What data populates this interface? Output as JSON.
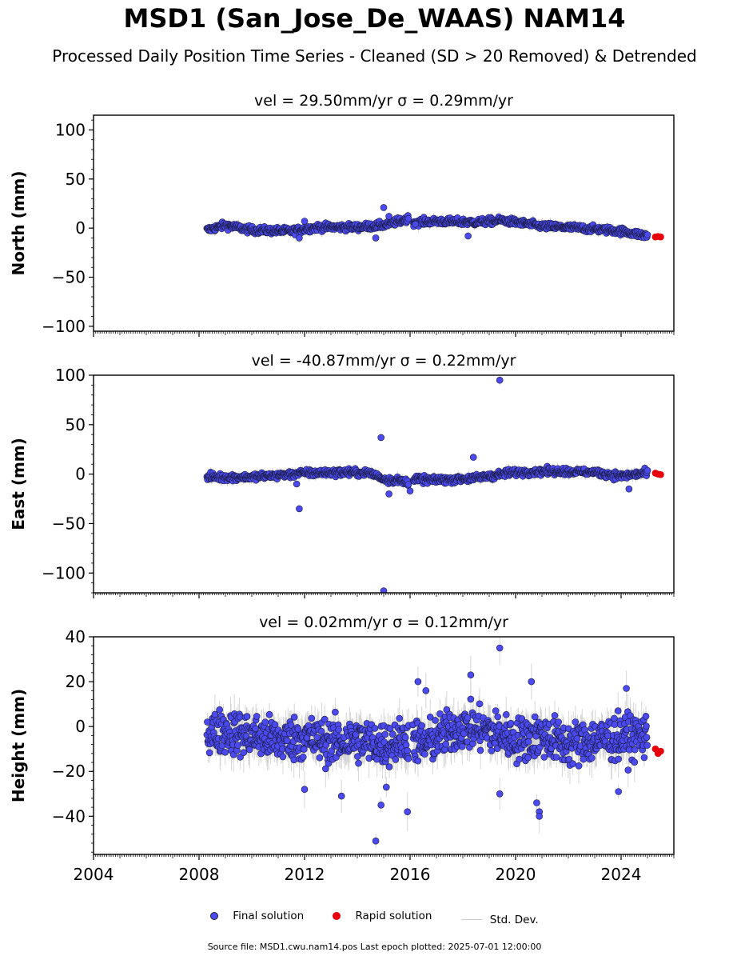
{
  "title": "MSD1 (San_Jose_De_WAAS) NAM14",
  "subtitle": "Processed Daily Position Time Series - Cleaned (SD > 20 Removed) & Detrended",
  "legend": {
    "final_label": "Final solution",
    "rapid_label": "Rapid solution",
    "std_label": "Std. Dev."
  },
  "colors": {
    "final": "#4a4af0",
    "rapid": "#e8000b",
    "std": "#cccccc"
  },
  "footer": "Source file: MSD1.cwu.nam14.pos  Last epoch plotted: 2025-07-01 12:00:00",
  "chart_data": [
    {
      "type": "scatter",
      "title": "vel = 29.50mm/yr   σ = 0.29mm/yr",
      "ylabel": "North (mm)",
      "xlim": [
        2004,
        2026
      ],
      "ylim": [
        -105,
        115
      ],
      "yticks": [
        -100,
        -50,
        0,
        50,
        100
      ],
      "xticks": [
        2004,
        2008,
        2012,
        2016,
        2020,
        2024
      ],
      "show_xtick_labels": false,
      "data_range": [
        2008.3,
        2025.0
      ],
      "series_shape": [
        [
          2008.3,
          -2
        ],
        [
          2009.0,
          3
        ],
        [
          2010.0,
          -2
        ],
        [
          2011.5,
          -3
        ],
        [
          2012.5,
          1
        ],
        [
          2014.0,
          1
        ],
        [
          2015.0,
          3
        ],
        [
          2016.0,
          10
        ],
        [
          2016.05,
          6
        ],
        [
          2017.0,
          7
        ],
        [
          2018.5,
          6
        ],
        [
          2019.5,
          8
        ],
        [
          2021.0,
          2
        ],
        [
          2022.5,
          0
        ],
        [
          2024.0,
          -3
        ],
        [
          2025.0,
          -8
        ]
      ],
      "noise": 2.5,
      "std_scale": 4,
      "outliers": [
        [
          2011.8,
          -10
        ],
        [
          2012.0,
          7
        ],
        [
          2014.7,
          -10
        ],
        [
          2015.0,
          21
        ],
        [
          2015.2,
          12
        ],
        [
          2016.2,
          4
        ],
        [
          2018.2,
          -8
        ]
      ],
      "rapid": [
        [
          2025.3,
          -9
        ],
        [
          2025.4,
          -8.5
        ],
        [
          2025.5,
          -9
        ]
      ]
    },
    {
      "type": "scatter",
      "title": "vel = -40.87mm/yr   σ = 0.22mm/yr",
      "ylabel": "East (mm)",
      "xlim": [
        2004,
        2026
      ],
      "ylim": [
        -120,
        100
      ],
      "yticks": [
        -100,
        -50,
        0,
        50,
        100
      ],
      "xticks": [
        2004,
        2008,
        2012,
        2016,
        2020,
        2024
      ],
      "show_xtick_labels": false,
      "data_range": [
        2008.3,
        2025.0
      ],
      "series_shape": [
        [
          2008.3,
          -3
        ],
        [
          2010.0,
          -3
        ],
        [
          2012.0,
          1
        ],
        [
          2013.5,
          2
        ],
        [
          2014.5,
          1
        ],
        [
          2015.0,
          -5
        ],
        [
          2016.0,
          -8
        ],
        [
          2016.05,
          -5
        ],
        [
          2017.0,
          -6
        ],
        [
          2018.5,
          -4
        ],
        [
          2020.0,
          2
        ],
        [
          2021.5,
          3
        ],
        [
          2023.0,
          2
        ],
        [
          2024.0,
          -2
        ],
        [
          2025.0,
          1
        ]
      ],
      "noise": 2.5,
      "std_scale": 4,
      "outliers": [
        [
          2011.8,
          -35
        ],
        [
          2011.7,
          -10
        ],
        [
          2014.9,
          37
        ],
        [
          2015.2,
          -20
        ],
        [
          2015.0,
          -118
        ],
        [
          2016.0,
          -17
        ],
        [
          2018.4,
          17
        ],
        [
          2019.4,
          95
        ],
        [
          2024.3,
          -15
        ]
      ],
      "rapid": [
        [
          2025.3,
          1
        ],
        [
          2025.4,
          0
        ],
        [
          2025.5,
          -0.5
        ]
      ]
    },
    {
      "type": "scatter",
      "title": "vel = 0.02mm/yr   σ = 0.12mm/yr",
      "ylabel": "Height (mm)",
      "xlim": [
        2004,
        2026
      ],
      "ylim": [
        -57,
        40
      ],
      "yticks": [
        -40,
        -20,
        0,
        20,
        40
      ],
      "xticks": [
        2004,
        2008,
        2012,
        2016,
        2020,
        2024
      ],
      "xtick_labels": [
        "2004",
        "2008",
        "2012",
        "2016",
        "2020",
        "2024"
      ],
      "show_xtick_labels": true,
      "data_range": [
        2008.3,
        2025.0
      ],
      "series_shape": [
        [
          2008.3,
          -3
        ],
        [
          2009.0,
          -2
        ],
        [
          2010.0,
          -4
        ],
        [
          2011.0,
          -6
        ],
        [
          2012.0,
          -5
        ],
        [
          2013.0,
          -7
        ],
        [
          2014.0,
          -6
        ],
        [
          2015.0,
          -8
        ],
        [
          2016.0,
          -5
        ],
        [
          2016.5,
          -8
        ],
        [
          2017.0,
          -5
        ],
        [
          2018.0,
          0
        ],
        [
          2019.0,
          -2
        ],
        [
          2020.0,
          -6
        ],
        [
          2021.0,
          -4
        ],
        [
          2022.0,
          -8
        ],
        [
          2023.0,
          -6
        ],
        [
          2024.0,
          -5
        ],
        [
          2025.0,
          -4
        ]
      ],
      "noise": 7,
      "std_scale": 6,
      "outliers": [
        [
          2014.7,
          -51
        ],
        [
          2014.9,
          -35
        ],
        [
          2015.1,
          -27
        ],
        [
          2015.9,
          -38
        ],
        [
          2016.3,
          20
        ],
        [
          2016.6,
          16
        ],
        [
          2018.3,
          23
        ],
        [
          2019.4,
          35
        ],
        [
          2019.4,
          -30
        ],
        [
          2020.6,
          20
        ],
        [
          2020.8,
          -34
        ],
        [
          2020.9,
          -38
        ],
        [
          2020.9,
          -40
        ],
        [
          2023.9,
          -29
        ],
        [
          2024.2,
          17
        ],
        [
          2013.4,
          -31
        ],
        [
          2012.0,
          -28
        ]
      ],
      "rapid": [
        [
          2025.3,
          -10
        ],
        [
          2025.4,
          -12
        ],
        [
          2025.5,
          -11
        ]
      ]
    }
  ]
}
